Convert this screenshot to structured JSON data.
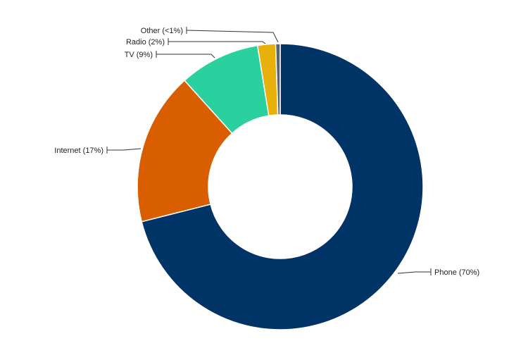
{
  "chart_data": {
    "type": "pie",
    "variant": "donut",
    "title": "",
    "slices": [
      {
        "label": "Phone (70%)",
        "value": 70,
        "color": "#003366"
      },
      {
        "label": "Internet (17%)",
        "value": 17,
        "color": "#d85e00"
      },
      {
        "label": "TV (9%)",
        "value": 9,
        "color": "#2ad19e"
      },
      {
        "label": "Radio (2%)",
        "value": 2,
        "color": "#e8b00b"
      },
      {
        "label": "Other (<1%)",
        "value": 0.5,
        "color": "#5a6470"
      }
    ],
    "legend": "none",
    "labels": "outside with leader lines",
    "slice_order": "clockwise from top"
  }
}
